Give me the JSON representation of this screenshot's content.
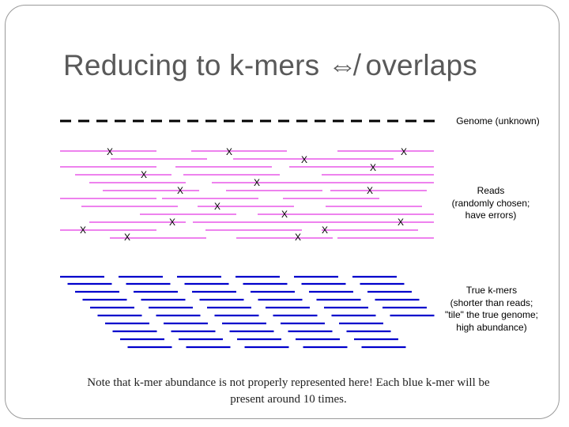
{
  "slide": {
    "title": "Reducing to k-mers ⇎ overlaps",
    "genome_label": "Genome (unknown)",
    "reads_label_lines": [
      "Reads",
      "(randomly chosen;",
      "have errors)"
    ],
    "kmers_label_lines": [
      "True k-mers",
      "(shorter than reads;",
      "\"tile\" the true genome;",
      "high abundance)"
    ],
    "footer_note": "Note that k-mer abundance is not properly represented here! Each blue k-mer will be present around 10 times.",
    "error_mark": "X"
  },
  "colors": {
    "genome": "#000000",
    "reads": "#ee82ee",
    "kmers": "#0000cc",
    "title": "#595959"
  }
}
